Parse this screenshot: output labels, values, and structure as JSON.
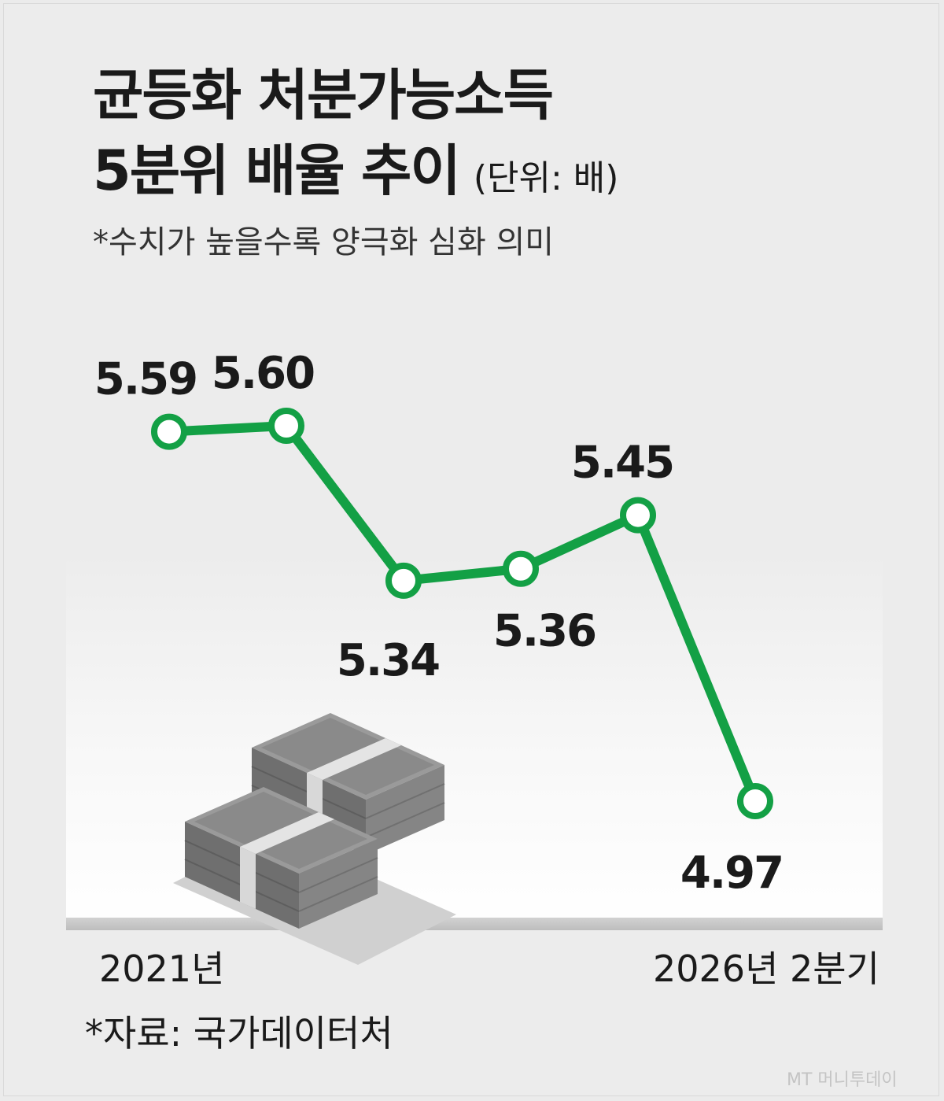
{
  "title_line1": "균등화 처분가능소득",
  "title_line2": "5분위 배율 추이",
  "unit": "(단위: 배)",
  "note": "*수치가 높을수록 양극화 심화 의미",
  "source": "*자료: 국가데이터처",
  "credit": "MT 머니투데이",
  "colors": {
    "line": "#13a045",
    "marker_fill": "#ffffff",
    "text": "#1a1a1a"
  },
  "illustration_icon": "money-stacks-icon",
  "chart_data": {
    "type": "line",
    "x_start_label": "2021년",
    "x_end_label": "2026년 2분기",
    "values": [
      5.59,
      5.6,
      5.34,
      5.36,
      5.45,
      4.97
    ],
    "data_labels": [
      "5.59",
      "5.60",
      "5.34",
      "5.36",
      "5.45",
      "4.97"
    ],
    "label_position": [
      "above",
      "above",
      "below",
      "below",
      "above",
      "below"
    ],
    "grid": false,
    "legend": "none"
  }
}
